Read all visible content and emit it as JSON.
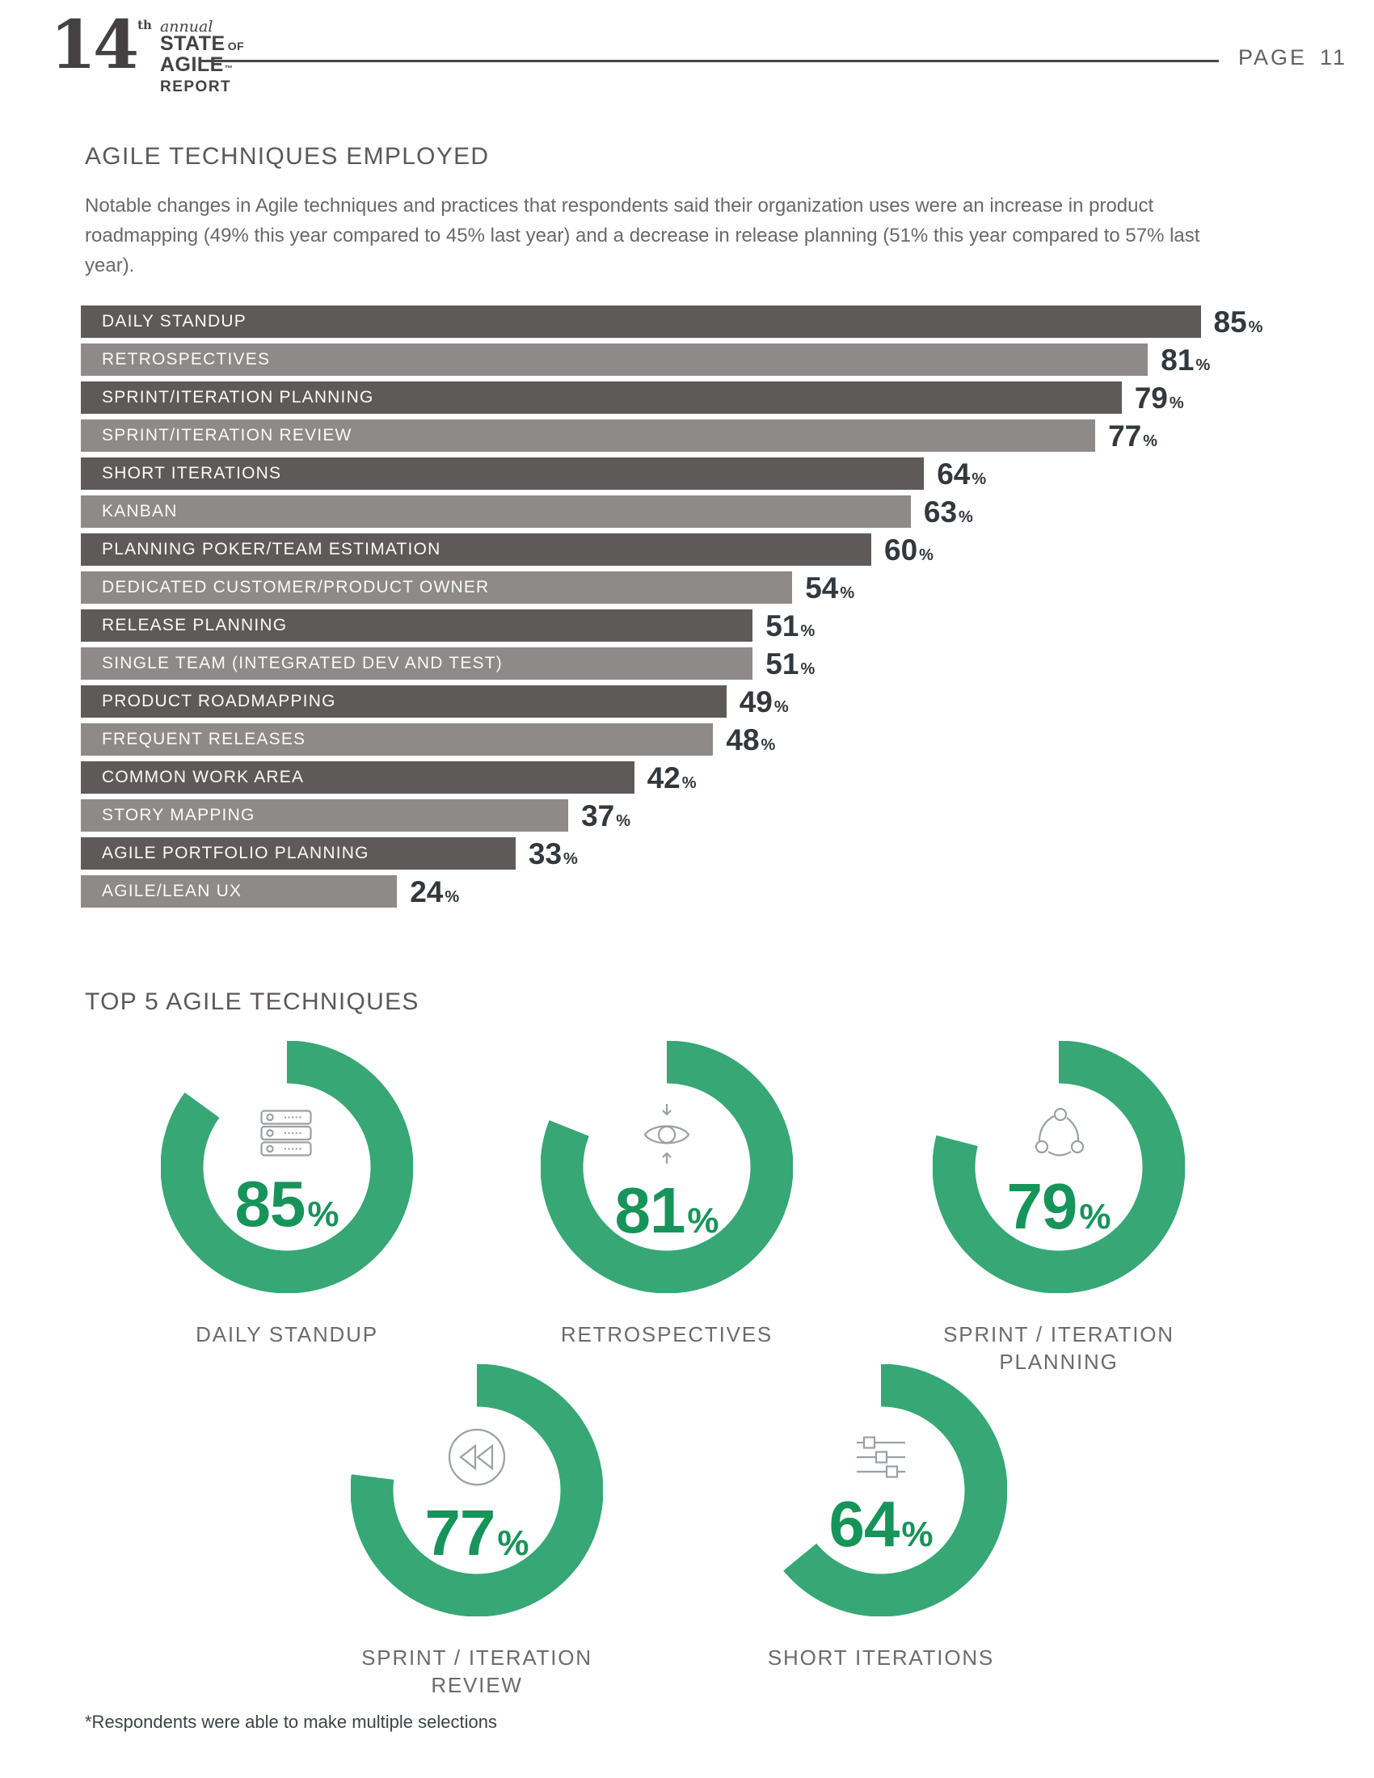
{
  "header": {
    "logo": {
      "number": "14",
      "ordinal": "th",
      "annual": "annual",
      "state": "STATE",
      "of": "OF",
      "agile": "AGILE",
      "tm": "™",
      "report": "REPORT"
    },
    "page_label": "PAGE",
    "page_number": "11"
  },
  "section_techniques": {
    "title": "AGILE TECHNIQUES EMPLOYED",
    "description": "Notable changes in Agile techniques and practices that respondents said their organization uses were an increase in product roadmapping (49% this year compared to 45% last year) and a decrease in release planning (51% this year compared to 57% last year)."
  },
  "chart_data": [
    {
      "type": "bar",
      "orientation": "horizontal",
      "title": "AGILE TECHNIQUES EMPLOYED",
      "categories": [
        "DAILY STANDUP",
        "RETROSPECTIVES",
        "SPRINT/ITERATION PLANNING",
        "SPRINT/ITERATION REVIEW",
        "SHORT ITERATIONS",
        "KANBAN",
        "PLANNING POKER/TEAM ESTIMATION",
        "DEDICATED CUSTOMER/PRODUCT OWNER",
        "RELEASE PLANNING",
        "SINGLE TEAM (INTEGRATED DEV AND TEST)",
        "PRODUCT ROADMAPPING",
        "FREQUENT RELEASES",
        "COMMON WORK AREA",
        "STORY MAPPING",
        "AGILE PORTFOLIO PLANNING",
        "AGILE/LEAN UX"
      ],
      "values": [
        85,
        81,
        79,
        77,
        64,
        63,
        60,
        54,
        51,
        51,
        49,
        48,
        42,
        37,
        33,
        24
      ],
      "unit": "%",
      "xlim": [
        0,
        100
      ],
      "grid": false,
      "bar_color_dark": "#5e5a5a",
      "bar_color_light": "#8d8a89",
      "value_label_color": "#33383d",
      "bar_text_color": "#fafafa"
    },
    {
      "type": "pie",
      "variant": "donut-set",
      "title": "TOP 5 AGILE TECHNIQUES",
      "ring_color": "#36a775",
      "value_color": "#17945a",
      "icon_color": "#9aa0a3",
      "legend_position": "below-each",
      "items": [
        {
          "label": "DAILY STANDUP",
          "value": 85,
          "unit": "%",
          "icon": "server-stack-icon"
        },
        {
          "label": "RETROSPECTIVES",
          "value": 81,
          "unit": "%",
          "icon": "eye-review-icon"
        },
        {
          "label": "SPRINT / ITERATION PLANNING",
          "value": 79,
          "unit": "%",
          "icon": "cycle-nodes-icon"
        },
        {
          "label": "SPRINT / ITERATION REVIEW",
          "value": 77,
          "unit": "%",
          "icon": "rewind-icon"
        },
        {
          "label": "SHORT ITERATIONS",
          "value": 64,
          "unit": "%",
          "icon": "sliders-icon"
        }
      ]
    }
  ],
  "footnote": "*Respondents were able to make multiple selections"
}
